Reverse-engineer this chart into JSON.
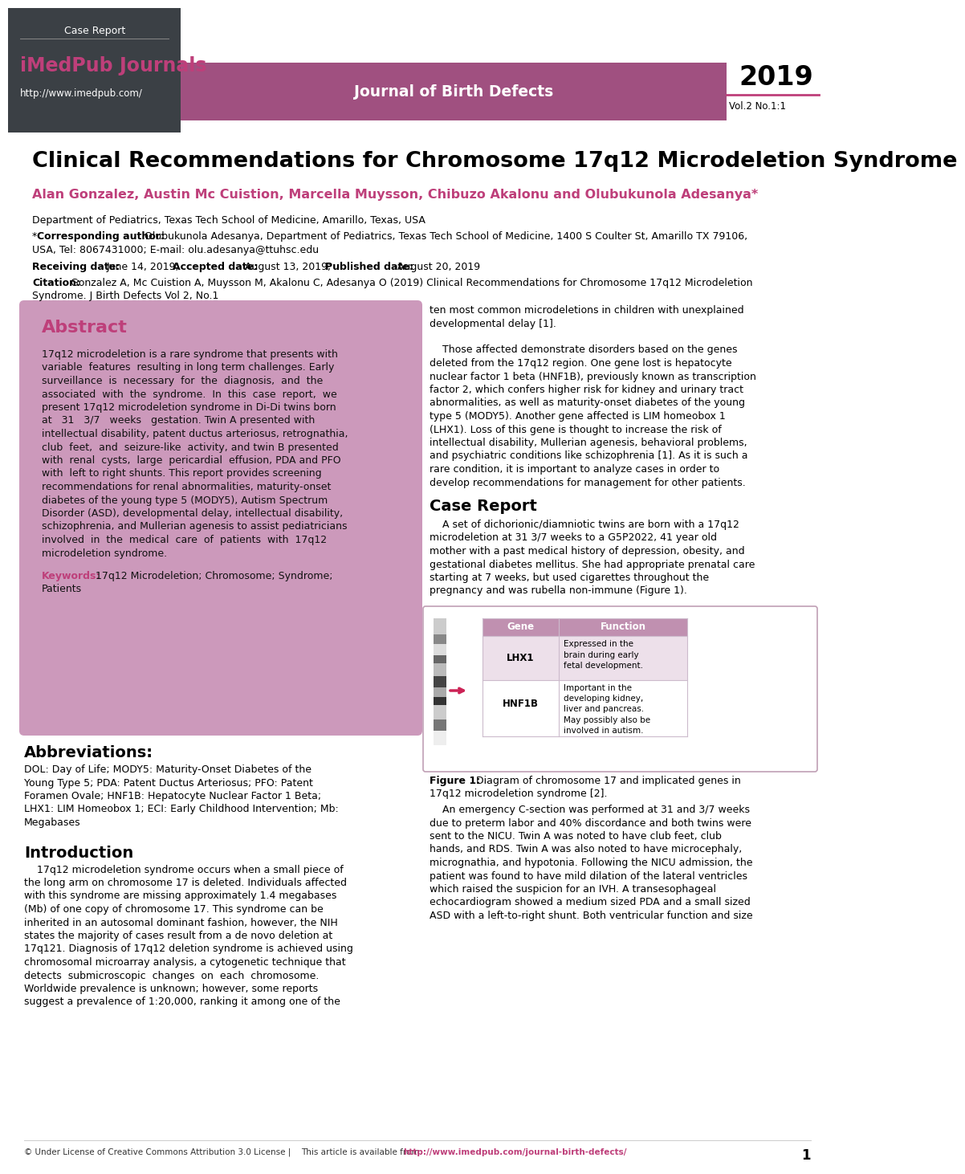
{
  "header_dark_bg": "#3b4045",
  "header_pink_bg": "#a05080",
  "case_report_text": "Case Report",
  "journal_name": "iMedPub Journals",
  "journal_url": "http://www.imedpub.com/",
  "journal_title": "Journal of Birth Defects",
  "year": "2019",
  "vol": "Vol.2 No.1:1",
  "title": "Clinical Recommendations for Chromosome 17q12 Microdeletion Syndrome",
  "authors": "Alan Gonzalez, Austin Mc Cuistion, Marcella Muysson, Chibuzo Akalonu and Olubukunola Adesanya*",
  "department": "Department of Pediatrics, Texas Tech School of Medicine, Amarillo, Texas, USA",
  "pink_color": "#be3f7a",
  "abstract_bg": "#cc99bb",
  "footer_link_color": "#be3f7a",
  "page_num": "1"
}
